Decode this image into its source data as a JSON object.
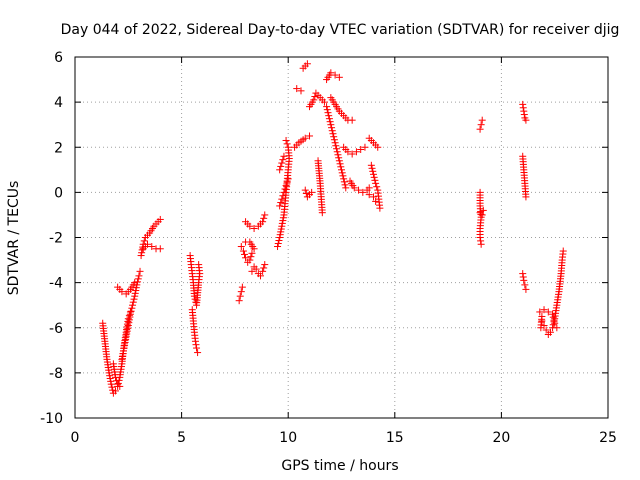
{
  "colors": {
    "series": "#ff0000",
    "grid": "#a0a0a0",
    "frame": "#000000",
    "background": "#ffffff"
  },
  "chart_data": {
    "type": "scatter",
    "title": "Day 044 of 2022, Sidereal Day-to-day VTEC variation (SDTVAR) for receiver djig",
    "xlabel": "GPS time / hours",
    "ylabel": "SDTVAR / TECUs",
    "xlim": [
      0,
      25
    ],
    "ylim": [
      -10,
      6
    ],
    "xticks": [
      "0",
      "5",
      "10",
      "15",
      "20",
      "25"
    ],
    "yticks": [
      "-10",
      "-8",
      "-6",
      "-4",
      "-2",
      "0",
      "2",
      "4",
      "6"
    ],
    "xtick_values": [
      0,
      5,
      10,
      15,
      20,
      25
    ],
    "ytick_values": [
      -10,
      -8,
      -6,
      -4,
      -2,
      0,
      2,
      4,
      6
    ],
    "grid": true,
    "marker": "plus",
    "segments": [
      [
        [
          1.3,
          -5.8
        ],
        [
          1.4,
          -6.6
        ],
        [
          1.5,
          -7.4
        ],
        [
          1.6,
          -8.0
        ],
        [
          1.7,
          -8.5
        ],
        [
          1.8,
          -8.9
        ],
        [
          1.9,
          -8.8
        ],
        [
          2.0,
          -8.6
        ],
        [
          2.1,
          -8.2
        ],
        [
          2.2,
          -7.6
        ],
        [
          2.3,
          -6.8
        ],
        [
          2.4,
          -6.2
        ],
        [
          2.5,
          -5.6
        ],
        [
          2.6,
          -5.3
        ]
      ],
      [
        [
          1.8,
          -7.6
        ],
        [
          1.9,
          -8.2
        ],
        [
          2.0,
          -8.5
        ],
        [
          2.1,
          -8.6
        ]
      ],
      [
        [
          2.2,
          -7.4
        ],
        [
          2.3,
          -6.9
        ],
        [
          2.4,
          -6.4
        ],
        [
          2.5,
          -5.9
        ],
        [
          2.6,
          -5.4
        ],
        [
          2.7,
          -5.0
        ],
        [
          2.8,
          -4.6
        ],
        [
          2.9,
          -4.1
        ],
        [
          3.0,
          -3.7
        ],
        [
          3.05,
          -3.5
        ]
      ],
      [
        [
          2.0,
          -4.2
        ],
        [
          2.2,
          -4.4
        ],
        [
          2.4,
          -4.5
        ],
        [
          2.6,
          -4.3
        ],
        [
          2.8,
          -4.0
        ]
      ],
      [
        [
          3.1,
          -2.8
        ],
        [
          3.2,
          -2.3
        ],
        [
          3.3,
          -2.0
        ],
        [
          3.5,
          -1.8
        ],
        [
          3.7,
          -1.5
        ],
        [
          3.9,
          -1.3
        ],
        [
          4.0,
          -1.2
        ]
      ],
      [
        [
          3.2,
          -2.5
        ],
        [
          3.4,
          -2.3
        ],
        [
          3.6,
          -2.4
        ],
        [
          3.8,
          -2.5
        ],
        [
          4.0,
          -2.5
        ]
      ],
      [
        [
          5.4,
          -2.8
        ],
        [
          5.45,
          -3.2
        ],
        [
          5.5,
          -3.6
        ],
        [
          5.55,
          -4.0
        ],
        [
          5.6,
          -4.6
        ],
        [
          5.7,
          -5.0
        ],
        [
          5.8,
          -4.0
        ],
        [
          5.85,
          -3.6
        ],
        [
          5.8,
          -3.2
        ]
      ],
      [
        [
          5.5,
          -5.2
        ],
        [
          5.55,
          -5.7
        ],
        [
          5.6,
          -6.2
        ],
        [
          5.65,
          -6.6
        ],
        [
          5.7,
          -6.9
        ],
        [
          5.75,
          -7.1
        ]
      ],
      [
        [
          7.7,
          -4.8
        ],
        [
          7.75,
          -4.6
        ],
        [
          7.8,
          -4.4
        ],
        [
          7.85,
          -4.2
        ]
      ],
      [
        [
          7.8,
          -2.4
        ],
        [
          7.9,
          -2.6
        ],
        [
          8.0,
          -2.9
        ],
        [
          8.1,
          -3.1
        ],
        [
          8.2,
          -3.0
        ],
        [
          8.3,
          -2.7
        ],
        [
          8.4,
          -2.5
        ],
        [
          8.2,
          -2.2
        ],
        [
          8.0,
          -2.2
        ]
      ],
      [
        [
          8.3,
          -3.5
        ],
        [
          8.4,
          -3.3
        ],
        [
          8.5,
          -3.4
        ],
        [
          8.6,
          -3.6
        ],
        [
          8.7,
          -3.7
        ],
        [
          8.8,
          -3.5
        ],
        [
          8.9,
          -3.2
        ]
      ],
      [
        [
          8.0,
          -1.3
        ],
        [
          8.2,
          -1.5
        ],
        [
          8.4,
          -1.6
        ],
        [
          8.6,
          -1.5
        ],
        [
          8.8,
          -1.3
        ],
        [
          8.9,
          -1.0
        ]
      ],
      [
        [
          9.5,
          -2.4
        ],
        [
          9.6,
          -2.0
        ],
        [
          9.7,
          -1.5
        ],
        [
          9.8,
          -1.0
        ],
        [
          9.85,
          -0.5
        ],
        [
          9.9,
          0.0
        ],
        [
          9.95,
          0.5
        ],
        [
          10.0,
          1.0
        ],
        [
          10.05,
          1.5
        ],
        [
          10.0,
          2.0
        ],
        [
          9.9,
          2.3
        ]
      ],
      [
        [
          9.6,
          -0.6
        ],
        [
          9.7,
          -0.3
        ],
        [
          9.8,
          0.0
        ],
        [
          9.9,
          0.3
        ],
        [
          10.0,
          0.6
        ]
      ],
      [
        [
          9.6,
          1.0
        ],
        [
          9.7,
          1.3
        ],
        [
          9.8,
          1.6
        ]
      ],
      [
        [
          10.3,
          2.0
        ],
        [
          10.5,
          2.2
        ],
        [
          10.8,
          2.4
        ],
        [
          11.0,
          2.5
        ]
      ],
      [
        [
          10.4,
          4.6
        ],
        [
          10.6,
          4.5
        ]
      ],
      [
        [
          10.7,
          5.5
        ],
        [
          10.9,
          5.7
        ]
      ],
      [
        [
          10.8,
          0.1
        ],
        [
          10.9,
          -0.2
        ],
        [
          11.1,
          0.0
        ]
      ],
      [
        [
          11.0,
          3.8
        ],
        [
          11.2,
          4.1
        ],
        [
          11.3,
          4.4
        ],
        [
          11.5,
          4.2
        ],
        [
          11.7,
          4.0
        ]
      ],
      [
        [
          11.4,
          1.4
        ],
        [
          11.5,
          0.4
        ],
        [
          11.6,
          -0.9
        ]
      ],
      [
        [
          11.8,
          5.0
        ],
        [
          12.0,
          5.3
        ],
        [
          12.2,
          5.2
        ],
        [
          12.4,
          5.1
        ]
      ],
      [
        [
          11.8,
          3.8
        ],
        [
          11.9,
          3.4
        ],
        [
          12.0,
          3.0
        ],
        [
          12.1,
          2.6
        ],
        [
          12.2,
          2.2
        ],
        [
          12.3,
          1.8
        ],
        [
          12.4,
          1.4
        ],
        [
          12.5,
          1.0
        ],
        [
          12.6,
          0.6
        ],
        [
          12.7,
          0.2
        ]
      ],
      [
        [
          12.0,
          4.2
        ],
        [
          12.2,
          3.9
        ],
        [
          12.4,
          3.6
        ],
        [
          12.6,
          3.4
        ],
        [
          12.8,
          3.2
        ],
        [
          13.0,
          3.2
        ]
      ],
      [
        [
          12.6,
          2.0
        ],
        [
          12.8,
          1.8
        ],
        [
          13.0,
          1.7
        ],
        [
          13.2,
          1.8
        ],
        [
          13.4,
          1.9
        ],
        [
          13.6,
          2.0
        ]
      ],
      [
        [
          12.9,
          0.5
        ],
        [
          13.1,
          0.2
        ],
        [
          13.3,
          0.1
        ],
        [
          13.5,
          0.0
        ],
        [
          13.7,
          0.1
        ],
        [
          13.8,
          0.2
        ]
      ],
      [
        [
          13.8,
          2.4
        ],
        [
          14.0,
          2.2
        ],
        [
          14.2,
          2.0
        ]
      ],
      [
        [
          13.9,
          1.2
        ],
        [
          14.0,
          0.8
        ],
        [
          14.1,
          0.4
        ],
        [
          14.2,
          0.1
        ],
        [
          14.25,
          -0.3
        ],
        [
          14.3,
          -0.7
        ]
      ],
      [
        [
          13.8,
          -0.1
        ],
        [
          14.0,
          -0.2
        ],
        [
          14.1,
          -0.4
        ]
      ],
      [
        [
          19.0,
          2.8
        ],
        [
          19.05,
          3.0
        ],
        [
          19.1,
          3.2
        ]
      ],
      [
        [
          19.0,
          0.0
        ],
        [
          19.0,
          -0.6
        ],
        [
          19.05,
          -1.1
        ],
        [
          19.0,
          -1.6
        ],
        [
          19.0,
          -2.0
        ],
        [
          19.05,
          -2.3
        ]
      ],
      [
        [
          19.0,
          -0.9
        ],
        [
          19.1,
          -1.0
        ],
        [
          19.15,
          -0.8
        ]
      ],
      [
        [
          21.0,
          3.9
        ],
        [
          21.05,
          3.6
        ],
        [
          21.1,
          3.3
        ],
        [
          21.15,
          3.2
        ]
      ],
      [
        [
          21.0,
          1.6
        ],
        [
          21.05,
          1.0
        ],
        [
          21.1,
          0.4
        ],
        [
          21.15,
          -0.2
        ]
      ],
      [
        [
          21.0,
          -3.6
        ],
        [
          21.05,
          -3.9
        ],
        [
          21.1,
          -4.1
        ],
        [
          21.15,
          -4.3
        ]
      ],
      [
        [
          21.9,
          -5.7
        ],
        [
          22.0,
          -5.9
        ],
        [
          22.1,
          -6.1
        ],
        [
          22.2,
          -6.3
        ],
        [
          22.3,
          -6.2
        ],
        [
          22.4,
          -6.0
        ],
        [
          22.5,
          -5.6
        ],
        [
          22.6,
          -5.0
        ],
        [
          22.7,
          -4.4
        ],
        [
          22.8,
          -3.6
        ],
        [
          22.85,
          -3.0
        ],
        [
          22.9,
          -2.6
        ]
      ],
      [
        [
          22.0,
          -5.2
        ],
        [
          22.2,
          -5.3
        ],
        [
          22.4,
          -5.4
        ],
        [
          22.5,
          -5.8
        ],
        [
          22.6,
          -6.0
        ]
      ],
      [
        [
          21.8,
          -5.3
        ],
        [
          21.9,
          -5.5
        ],
        [
          21.85,
          -6.0
        ]
      ]
    ]
  }
}
